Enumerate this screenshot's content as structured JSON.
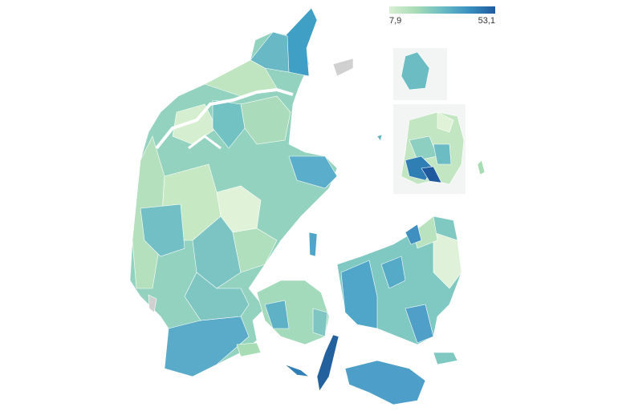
{
  "legend": {
    "min_label": "7,9",
    "max_label": "53,1",
    "min_value": 7.9,
    "max_value": 53.1,
    "colors": [
      "#d9f0d3",
      "#a8dcb5",
      "#6cbcc4",
      "#3a91c0",
      "#1f5a9e"
    ]
  },
  "colors": {
    "no_data": "#d0d0d0",
    "inset_background": "#f2f5f4"
  }
}
